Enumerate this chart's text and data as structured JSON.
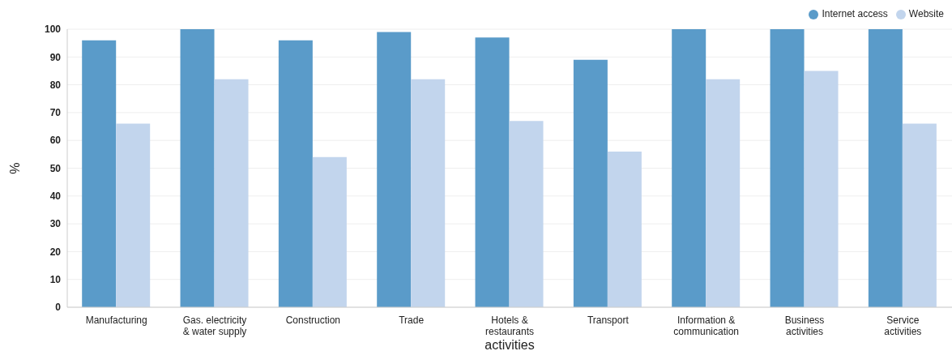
{
  "chart_data": {
    "type": "bar",
    "xlabel": "activities",
    "ylabel": "%",
    "categories": [
      "Manufacturing",
      "Gas. electricity & water supply",
      "Construction",
      "Trade",
      "Hotels & restaurants",
      "Transport",
      "Information & communication",
      "Business activities",
      "Service activities"
    ],
    "series": [
      {
        "name": "Internet access",
        "color": "#5a9bc9",
        "values": [
          96,
          100,
          96,
          99,
          97,
          89,
          100,
          100,
          100
        ]
      },
      {
        "name": "Website",
        "color": "#c2d5ed",
        "values": [
          66,
          82,
          54,
          82,
          67,
          56,
          82,
          85,
          66
        ]
      }
    ],
    "ylim": [
      0,
      100
    ],
    "yticks": [
      0,
      10,
      20,
      30,
      40,
      50,
      60,
      70,
      80,
      90,
      100
    ],
    "grid": "y",
    "legend": "top right"
  }
}
